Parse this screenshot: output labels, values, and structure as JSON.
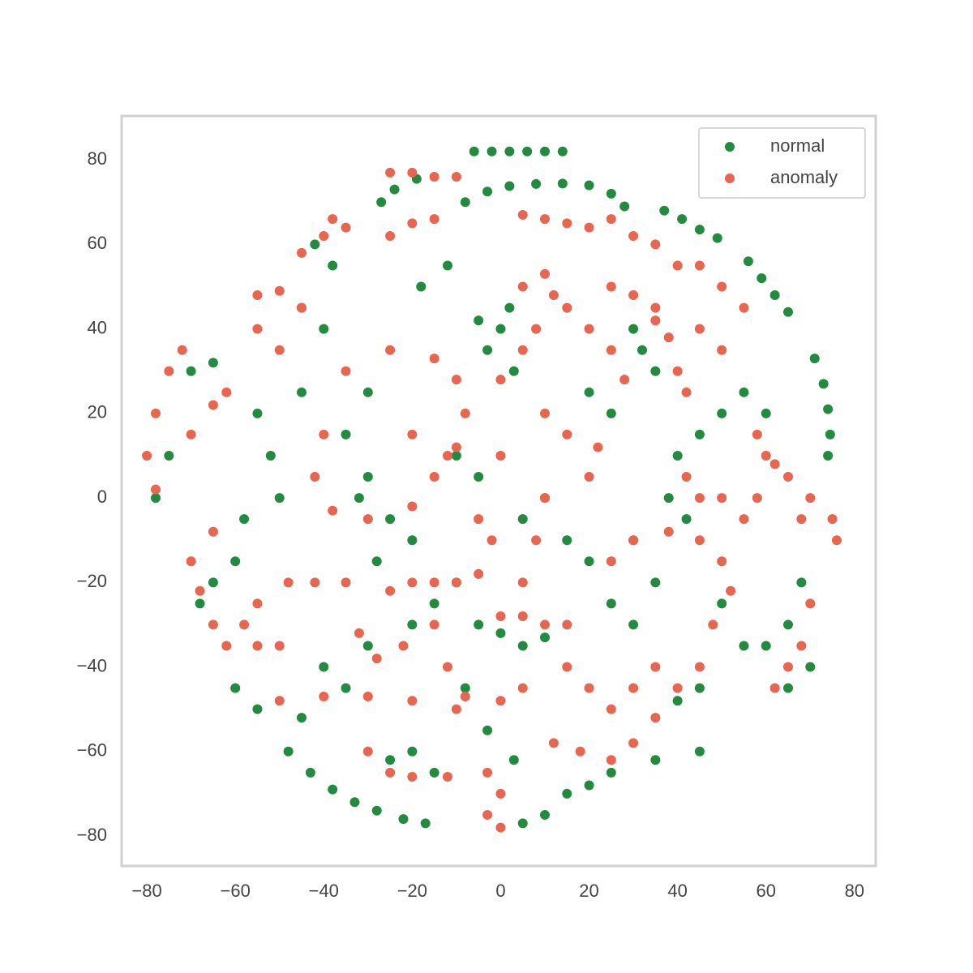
{
  "chart_data": {
    "type": "scatter",
    "xlim": [
      -85.7,
      84.8
    ],
    "ylim": [
      -87.1,
      90.4
    ],
    "xticks": [
      {
        "value": -80,
        "label": "−80"
      },
      {
        "value": -60,
        "label": "−60"
      },
      {
        "value": -40,
        "label": "−40"
      },
      {
        "value": -20,
        "label": "−20"
      },
      0,
      20,
      40,
      60,
      80
    ],
    "yticks": [
      {
        "value": -80,
        "label": "−80"
      },
      {
        "value": -60,
        "label": "−60"
      },
      {
        "value": -40,
        "label": "−40"
      },
      {
        "value": -20,
        "label": "−20"
      },
      0,
      20,
      40,
      60,
      80
    ],
    "grid": false,
    "legend": "upper right",
    "series": [
      {
        "name": "normal",
        "color": "#238b3f",
        "x": [
          -6,
          -2,
          2,
          6,
          10,
          14,
          -8,
          -3,
          2,
          8,
          14,
          20,
          25,
          28,
          37,
          41,
          45,
          49,
          56,
          59,
          62,
          65,
          71,
          73,
          74,
          74.5,
          74,
          -48,
          -43,
          -38,
          -33,
          -28,
          -22,
          -17,
          -27,
          -24,
          -19,
          0,
          -3,
          2,
          -5,
          3,
          -30,
          -32,
          -25,
          -28,
          -20,
          0,
          5,
          10,
          -5,
          32,
          35,
          30,
          25,
          20,
          50,
          55,
          45,
          40,
          -60,
          -65,
          -58,
          -50,
          -52,
          -55,
          -45,
          -40,
          -35,
          -30,
          -20,
          -15,
          -25,
          5,
          10,
          15,
          20,
          25,
          35,
          45,
          60,
          65,
          68,
          -70,
          -65,
          -75,
          -78,
          -68,
          -60,
          -55,
          -45,
          40,
          38,
          42,
          45,
          50,
          55,
          60,
          -10,
          -5,
          5,
          10,
          15,
          20,
          25,
          30,
          35,
          -40,
          -45,
          -38,
          -42,
          -12,
          -18,
          -8,
          -3,
          3,
          -10,
          -15,
          -20,
          65,
          70,
          30,
          -35,
          -30
        ],
        "y": [
          82,
          82,
          82,
          82,
          82,
          82,
          70,
          72.5,
          73.8,
          74.3,
          74.4,
          74,
          72,
          69,
          68,
          66,
          63.5,
          61.5,
          56,
          52,
          48,
          44,
          33,
          27,
          21,
          15,
          10,
          -60,
          -65,
          -69,
          -72,
          -74,
          -76,
          -77,
          70,
          73,
          75.5,
          40,
          35,
          45,
          42,
          30,
          5,
          0,
          -5,
          -15,
          -10,
          -32,
          -35,
          -33,
          -30,
          35,
          30,
          40,
          20,
          25,
          -25,
          -35,
          -45,
          -48,
          -15,
          -20,
          -5,
          0,
          10,
          20,
          25,
          -40,
          -45,
          -35,
          -60,
          -65,
          -62,
          -77,
          -75,
          -70,
          -68,
          -65,
          -62,
          -60,
          -35,
          -30,
          -20,
          30,
          32,
          10,
          0,
          -25,
          -45,
          -50,
          -52,
          10,
          0,
          -5,
          15,
          20,
          25,
          20,
          10,
          5,
          -5,
          0,
          -10,
          -15,
          -25,
          -30,
          -20,
          40,
          45,
          55,
          60,
          55,
          50,
          -45,
          -55,
          -62,
          -20,
          -25,
          -30,
          -45,
          -40,
          -10,
          15,
          25
        ]
      },
      {
        "name": "anomaly",
        "color": "#e8654f",
        "x": [
          -25,
          -20,
          -15,
          -10,
          -15,
          -20,
          -25,
          -35,
          -40,
          -45,
          -38,
          5,
          10,
          15,
          20,
          25,
          30,
          35,
          40,
          -55,
          -50,
          -45,
          -50,
          -55,
          -72,
          -75,
          -78,
          -80,
          -78,
          -70,
          -65,
          -62,
          5,
          10,
          12,
          8,
          5,
          0,
          15,
          20,
          25,
          28,
          -35,
          -25,
          -15,
          -10,
          -8,
          -12,
          -15,
          -20,
          -30,
          -38,
          -42,
          -40,
          -20,
          -10,
          0,
          10,
          8,
          5,
          -25,
          -20,
          -15,
          -10,
          -5,
          -15,
          -12,
          -8,
          0,
          5,
          0,
          5,
          10,
          15,
          -55,
          -58,
          -55,
          -50,
          -48,
          -42,
          -35,
          -62,
          -65,
          -68,
          -70,
          -65,
          -50,
          -40,
          -30,
          -20,
          -10,
          -30,
          -25,
          -20,
          -12,
          -3,
          0,
          -3,
          0,
          12,
          18,
          25,
          30,
          35,
          40,
          45,
          48,
          25,
          30,
          38,
          45,
          50,
          52,
          15,
          20,
          25,
          30,
          35,
          42,
          45,
          50,
          55,
          58,
          60,
          65,
          68,
          70,
          75,
          76,
          70,
          68,
          65,
          62,
          40,
          42,
          38,
          35,
          45,
          50,
          55,
          50,
          45,
          25,
          30,
          35,
          -32,
          -28,
          -22,
          58,
          62,
          -5,
          -2,
          20,
          22,
          15,
          10
        ],
        "y": [
          77,
          77,
          76,
          76,
          66,
          65,
          62,
          64,
          62,
          58,
          66,
          67,
          66,
          65,
          64,
          66,
          62,
          60,
          55,
          48,
          49,
          45,
          35,
          40,
          35,
          30,
          20,
          10,
          2,
          15,
          22,
          25,
          50,
          53,
          48,
          40,
          35,
          28,
          45,
          40,
          35,
          28,
          30,
          35,
          33,
          28,
          20,
          10,
          5,
          -2,
          -5,
          -3,
          5,
          15,
          15,
          12,
          10,
          0,
          -10,
          -20,
          -22,
          -20,
          -20,
          -20,
          -18,
          -30,
          -40,
          -47,
          -48,
          -45,
          -28,
          -28,
          -30,
          -30,
          -25,
          -30,
          -35,
          -35,
          -20,
          -20,
          -20,
          -35,
          -30,
          -22,
          -15,
          -8,
          -48,
          -47,
          -47,
          -48,
          -50,
          -60,
          -65,
          -66,
          -66,
          -65,
          -70,
          -75,
          -78,
          -58,
          -60,
          -62,
          -58,
          -52,
          -45,
          -40,
          -30,
          -15,
          -10,
          -8,
          -10,
          -15,
          -22,
          -40,
          -45,
          -50,
          -45,
          -40,
          5,
          0,
          0,
          -5,
          0,
          10,
          5,
          -5,
          0,
          -5,
          -10,
          -25,
          -35,
          -40,
          -45,
          30,
          25,
          38,
          45,
          40,
          35,
          45,
          50,
          55,
          50,
          48,
          42,
          -32,
          -38,
          -35,
          15,
          8,
          -5,
          -10,
          5,
          12,
          15,
          20
        ]
      }
    ]
  }
}
